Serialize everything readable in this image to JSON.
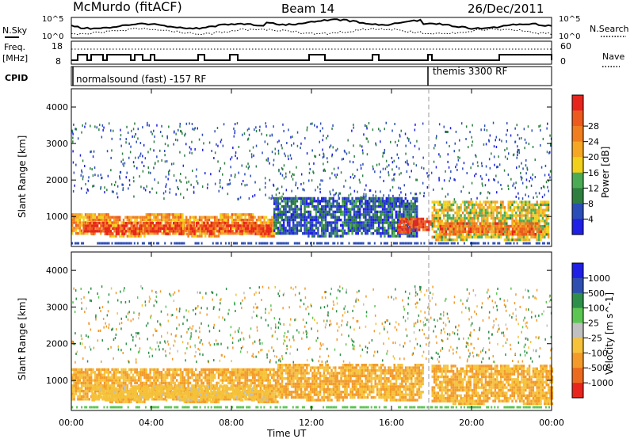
{
  "header": {
    "station": "McMurdo (fitACF)",
    "beam": "Beam 14",
    "date": "26/Dec/2011"
  },
  "noise_panel": {
    "left_label": "N.Sky",
    "right_label": "N.Search",
    "left_ticks": [
      "10^5",
      "10^0"
    ],
    "right_ticks": [
      "10^5",
      "10^0"
    ]
  },
  "freq_panel": {
    "left_label_top": "Freq.",
    "left_label_bottom": "[MHz]",
    "right_label": "Nave",
    "left_ticks": [
      "18",
      "8"
    ],
    "right_ticks": [
      "60",
      "0"
    ]
  },
  "cpid_panel": {
    "label": "CPID",
    "modes": [
      {
        "name": "normalsound (fast) -157 RF",
        "start_hour": 0
      },
      {
        "name": "themis 3300 RF",
        "start_hour": 18
      }
    ]
  },
  "colors": {
    "power_scale": [
      "#1f1fe6",
      "#2a4db8",
      "#2e7f3f",
      "#4bab55",
      "#f0d01a",
      "#f5a623",
      "#f07d1e",
      "#ec5a1d",
      "#e8251d"
    ],
    "velocity_scale": [
      "#1f1fe6",
      "#2e4fb0",
      "#2e8f4a",
      "#5cc653",
      "#c0c0c0",
      "#f5c23a",
      "#f39a2a",
      "#ec6a1f",
      "#e8251d"
    ]
  },
  "chart_data": [
    {
      "type": "heatmap",
      "name": "power",
      "ylabel": "Slant Range [km]",
      "xlabel": "",
      "xlim_hours": [
        0,
        24
      ],
      "ylim": [
        180,
        4500
      ],
      "yticks": [
        1000,
        2000,
        3000,
        4000
      ],
      "colorbar": {
        "label": "Power [dB]",
        "ticks": [
          4,
          8,
          12,
          16,
          20,
          24,
          28
        ]
      },
      "bands": [
        {
          "t0": 0,
          "t1": 10.1,
          "r0": 500,
          "r1": 1100,
          "level": 20
        },
        {
          "t0": 0.6,
          "t1": 10.0,
          "r0": 560,
          "r1": 900,
          "level": 28
        },
        {
          "t0": 10.1,
          "t1": 17.3,
          "r0": 500,
          "r1": 1600,
          "level": 6
        },
        {
          "t0": 16.3,
          "t1": 18.0,
          "r0": 600,
          "r1": 1000,
          "level": 28
        },
        {
          "t0": 18.0,
          "t1": 23.8,
          "r0": 400,
          "r1": 1500,
          "level": 16
        },
        {
          "t0": 18.4,
          "t1": 23.5,
          "r0": 550,
          "r1": 900,
          "level": 24
        }
      ]
    },
    {
      "type": "heatmap",
      "name": "velocity",
      "ylabel": "Slant Range [km]",
      "xlabel": "Time UT",
      "xlim_hours": [
        0,
        24
      ],
      "ylim": [
        180,
        4500
      ],
      "yticks": [
        1000,
        2000,
        3000,
        4000
      ],
      "xtick_labels": [
        "00:00",
        "04:00",
        "08:00",
        "12:00",
        "16:00",
        "20:00",
        "00:00"
      ],
      "colorbar": {
        "label": "Velocity [m s^-1]",
        "ticks": [
          1000,
          500,
          100,
          25,
          -25,
          -100,
          -500,
          -1000
        ]
      },
      "bands": [
        {
          "t0": 0,
          "t1": 10.3,
          "r0": 450,
          "r1": 1400,
          "level": -100
        },
        {
          "t0": 1.0,
          "t1": 9.8,
          "r0": 500,
          "r1": 900,
          "level": -50
        },
        {
          "t0": 10.3,
          "t1": 17.6,
          "r0": 500,
          "r1": 1500,
          "level": -100
        },
        {
          "t0": 18.0,
          "t1": 24,
          "r0": 400,
          "r1": 1500,
          "level": -100
        }
      ]
    }
  ]
}
